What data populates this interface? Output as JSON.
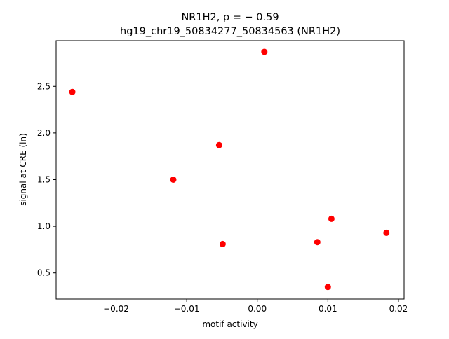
{
  "chart_data": {
    "type": "scatter",
    "title_line1": "NR1H2, ρ = − 0.59",
    "title_line2": "hg19_chr19_50834277_50834563 (NR1H2)",
    "xlabel": "motif activity",
    "ylabel": "signal at CRE (ln)",
    "xlim": [
      -0.0285,
      0.0208
    ],
    "ylim": [
      0.22,
      2.99
    ],
    "x_ticks": [
      -0.02,
      -0.01,
      0.0,
      0.01,
      0.02
    ],
    "x_tick_labels": [
      "−0.02",
      "−0.01",
      "0.00",
      "0.01",
      "0.02"
    ],
    "y_ticks": [
      0.5,
      1.0,
      1.5,
      2.0,
      2.5
    ],
    "y_tick_labels": [
      "0.5",
      "1.0",
      "1.5",
      "2.0",
      "2.5"
    ],
    "marker_color": "#ff0000",
    "grid": false,
    "legend": "none",
    "points": [
      {
        "x": -0.0262,
        "y": 2.44
      },
      {
        "x": 0.001,
        "y": 2.87
      },
      {
        "x": -0.0054,
        "y": 1.87
      },
      {
        "x": -0.0119,
        "y": 1.5
      },
      {
        "x": -0.0049,
        "y": 0.81
      },
      {
        "x": 0.0085,
        "y": 0.83
      },
      {
        "x": 0.0105,
        "y": 1.08
      },
      {
        "x": 0.0183,
        "y": 0.93
      },
      {
        "x": 0.01,
        "y": 0.35
      }
    ]
  }
}
